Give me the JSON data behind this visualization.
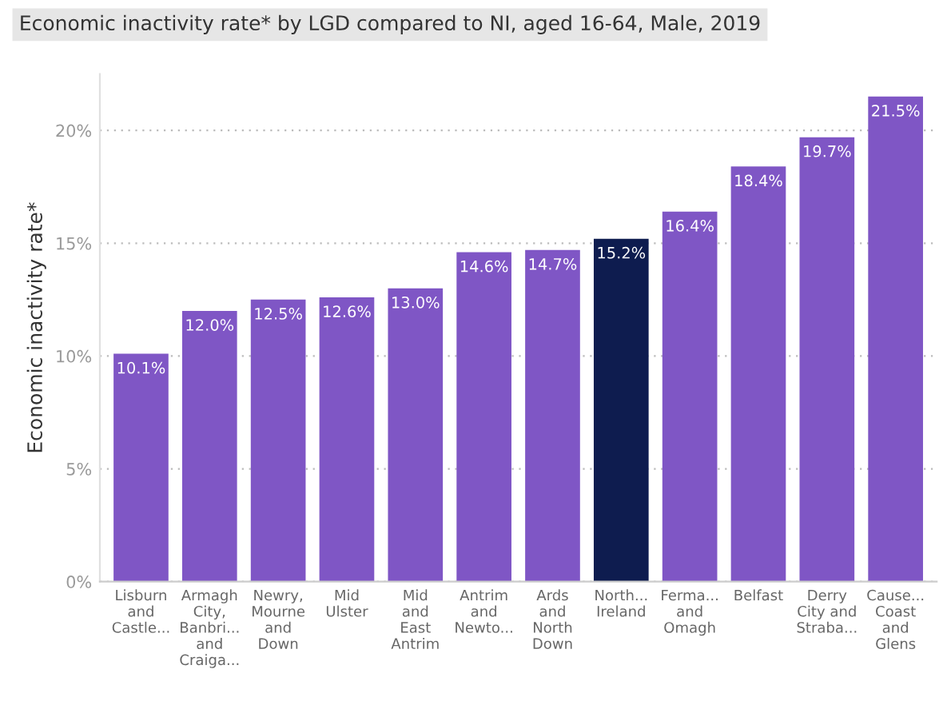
{
  "chart_data": {
    "type": "bar",
    "title": "Economic inactivity rate* by LGD compared to NI, aged 16-64, Male, 2019",
    "ylabel": "Economic inactivity rate*",
    "categories": [
      "Lisburn\nand\nCastle...",
      "Armagh\nCity,\nBanbri...\nand\nCraiga...",
      "Newry,\nMourne\nand\nDown",
      "Mid\nUlster",
      "Mid\nand\nEast\nAntrim",
      "Antrim\nand\nNewto...",
      "Ards\nand\nNorth\nDown",
      "North...\nIreland",
      "Ferma...\nand\nOmagh",
      "Belfast",
      "Derry\nCity and\nStraba...",
      "Cause...\nCoast\nand\nGlens"
    ],
    "values": [
      10.1,
      12.0,
      12.5,
      12.6,
      13.0,
      14.6,
      14.7,
      15.2,
      16.4,
      18.4,
      19.7,
      21.5
    ],
    "value_labels": [
      "10.1%",
      "12.0%",
      "12.5%",
      "12.6%",
      "13.0%",
      "14.6%",
      "14.7%",
      "15.2%",
      "16.4%",
      "18.4%",
      "19.7%",
      "21.5%"
    ],
    "colors": [
      "#7f56c5",
      "#7f56c5",
      "#7f56c5",
      "#7f56c5",
      "#7f56c5",
      "#7f56c5",
      "#7f56c5",
      "#0e1c4f",
      "#7f56c5",
      "#7f56c5",
      "#7f56c5",
      "#7f56c5"
    ],
    "ylim": [
      0,
      22.5
    ],
    "yticks": [
      {
        "value": 0,
        "label": "0%"
      },
      {
        "value": 5,
        "label": "5%"
      },
      {
        "value": 10,
        "label": "10%"
      },
      {
        "value": 15,
        "label": "15%"
      },
      {
        "value": 20,
        "label": "20%"
      }
    ],
    "grid": "y",
    "legend": false
  }
}
